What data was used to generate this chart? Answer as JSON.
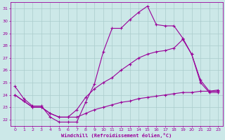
{
  "xlabel": "Windchill (Refroidissement éolien,°C)",
  "bg_color": "#cce8e8",
  "line_color": "#990099",
  "grid_color": "#aacccc",
  "xlim": [
    -0.5,
    23.5
  ],
  "ylim": [
    21.5,
    31.5
  ],
  "yticks": [
    22,
    23,
    24,
    25,
    26,
    27,
    28,
    29,
    30,
    31
  ],
  "xticks": [
    0,
    1,
    2,
    3,
    4,
    5,
    6,
    7,
    8,
    9,
    10,
    11,
    12,
    13,
    14,
    15,
    16,
    17,
    18,
    19,
    20,
    21,
    22,
    23
  ],
  "line1_x": [
    0,
    1,
    2,
    3,
    4,
    5,
    6,
    7,
    8,
    9,
    10,
    11,
    12,
    13,
    14,
    15,
    16,
    17,
    18,
    19,
    20,
    21,
    22,
    23
  ],
  "line1_y": [
    24.7,
    23.7,
    23.1,
    23.1,
    22.2,
    21.8,
    21.8,
    21.8,
    23.4,
    24.9,
    27.5,
    29.4,
    29.4,
    30.1,
    30.7,
    31.2,
    29.7,
    29.6,
    29.6,
    28.6,
    27.3,
    25.0,
    24.2,
    24.2
  ],
  "line2_x": [
    0,
    1,
    2,
    3,
    4,
    5,
    6,
    7,
    8,
    9,
    10,
    11,
    12,
    13,
    14,
    15,
    16,
    17,
    18,
    19,
    20,
    21,
    22,
    23
  ],
  "line2_y": [
    24.0,
    23.5,
    23.0,
    23.0,
    22.5,
    22.2,
    22.2,
    22.8,
    23.8,
    24.5,
    25.0,
    25.4,
    26.0,
    26.5,
    27.0,
    27.3,
    27.5,
    27.6,
    27.8,
    28.5,
    27.3,
    25.2,
    24.3,
    24.3
  ],
  "line3_x": [
    0,
    1,
    2,
    3,
    4,
    5,
    6,
    7,
    8,
    9,
    10,
    11,
    12,
    13,
    14,
    15,
    16,
    17,
    18,
    19,
    20,
    21,
    22,
    23
  ],
  "line3_y": [
    24.0,
    23.5,
    23.0,
    23.0,
    22.5,
    22.2,
    22.2,
    22.2,
    22.5,
    22.8,
    23.0,
    23.2,
    23.4,
    23.5,
    23.7,
    23.8,
    23.9,
    24.0,
    24.1,
    24.2,
    24.2,
    24.3,
    24.3,
    24.4
  ]
}
